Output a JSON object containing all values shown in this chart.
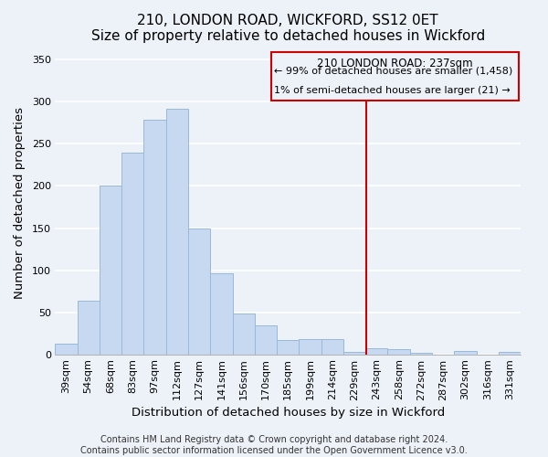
{
  "title": "210, LONDON ROAD, WICKFORD, SS12 0ET",
  "subtitle": "Size of property relative to detached houses in Wickford",
  "xlabel": "Distribution of detached houses by size in Wickford",
  "ylabel": "Number of detached properties",
  "bar_labels": [
    "39sqm",
    "54sqm",
    "68sqm",
    "83sqm",
    "97sqm",
    "112sqm",
    "127sqm",
    "141sqm",
    "156sqm",
    "170sqm",
    "185sqm",
    "199sqm",
    "214sqm",
    "229sqm",
    "243sqm",
    "258sqm",
    "272sqm",
    "287sqm",
    "302sqm",
    "316sqm",
    "331sqm"
  ],
  "bar_heights": [
    13,
    64,
    200,
    239,
    278,
    291,
    150,
    97,
    49,
    35,
    18,
    19,
    19,
    4,
    8,
    7,
    2,
    0,
    5,
    0,
    4
  ],
  "bar_color": "#c6d9f1",
  "bar_edge_color": "#9ab8d8",
  "ylim": [
    0,
    360
  ],
  "yticks": [
    0,
    50,
    100,
    150,
    200,
    250,
    300,
    350
  ],
  "annotation_title": "210 LONDON ROAD: 237sqm",
  "annotation_line1": "← 99% of detached houses are smaller (1,458)",
  "annotation_line2": "1% of semi-detached houses are larger (21) →",
  "vline_color": "#cc0000",
  "footer_line1": "Contains HM Land Registry data © Crown copyright and database right 2024.",
  "footer_line2": "Contains public sector information licensed under the Open Government Licence v3.0.",
  "background_color": "#edf2f9",
  "grid_color": "#ffffff",
  "title_fontsize": 11,
  "axis_label_fontsize": 9.5,
  "tick_fontsize": 8,
  "annotation_fontsize": 8.5,
  "footer_fontsize": 7
}
